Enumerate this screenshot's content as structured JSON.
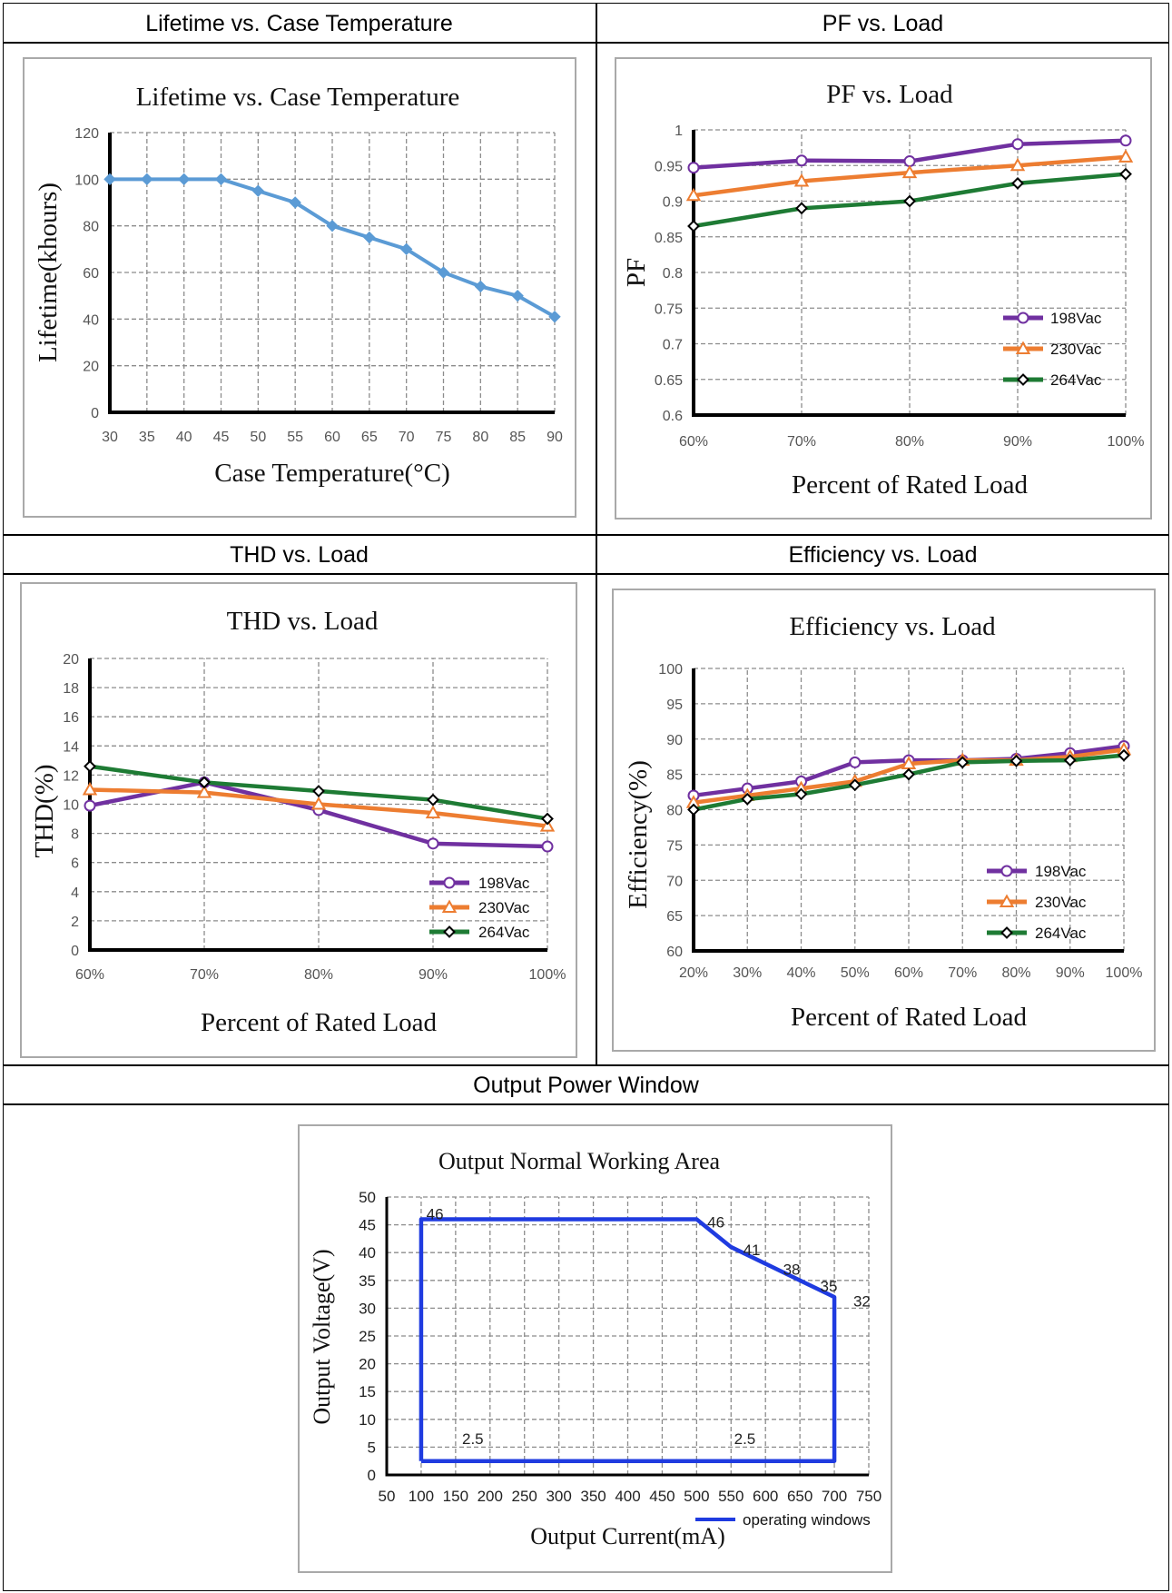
{
  "table": {
    "headers": [
      "Lifetime vs. Case Temperature",
      "PF vs. Load",
      "THD vs. Load",
      "Efficiency vs. Load",
      "Output Power Window"
    ]
  },
  "colors": {
    "purple": "#7030a0",
    "orange": "#ed7d31",
    "green": "#1e7b34",
    "blue_light": "#5b9bd5",
    "blue": "#1f3be0",
    "grid": "#8c8c8c"
  },
  "chart_data": [
    {
      "type": "line",
      "title": "Lifetime vs. Case Temperature",
      "xlabel": "Case Temperature(°C)",
      "ylabel": "Lifetime(khours)",
      "x": [
        30,
        35,
        40,
        45,
        50,
        55,
        60,
        65,
        70,
        75,
        80,
        85,
        90
      ],
      "xlim": [
        30,
        90
      ],
      "ylim": [
        0,
        120
      ],
      "yticks": [
        0,
        20,
        40,
        60,
        80,
        100,
        120
      ],
      "grid": true,
      "series": [
        {
          "values": [
            100,
            100,
            100,
            100,
            95,
            90,
            80,
            75,
            70,
            60,
            54,
            50,
            41
          ],
          "marker": "diamond",
          "color": "#5b9bd5"
        }
      ]
    },
    {
      "type": "line",
      "title": "PF vs. Load",
      "xlabel": "Percent of Rated Load",
      "ylabel": "PF",
      "categories": [
        "60%",
        "70%",
        "80%",
        "90%",
        "100%"
      ],
      "ylim": [
        0.6,
        1
      ],
      "yticks": [
        "0.6",
        "0.65",
        "0.7",
        "0.75",
        "0.8",
        "0.85",
        "0.9",
        "0.95",
        "1"
      ],
      "grid": true,
      "legend": "bottom-right",
      "series": [
        {
          "name": "198Vac",
          "values": [
            0.947,
            0.957,
            0.956,
            0.98,
            0.985
          ],
          "marker": "circle",
          "color": "#7030a0"
        },
        {
          "name": "230Vac",
          "values": [
            0.908,
            0.928,
            0.94,
            0.95,
            0.962
          ],
          "marker": "triangle",
          "color": "#ed7d31"
        },
        {
          "name": "264Vac",
          "values": [
            0.865,
            0.89,
            0.9,
            0.925,
            0.938
          ],
          "marker": "diamond",
          "color": "#1e7b34"
        }
      ]
    },
    {
      "type": "line",
      "title": "THD vs. Load",
      "xlabel": "Percent of Rated Load",
      "ylabel": "THD(%)",
      "categories": [
        "60%",
        "70%",
        "80%",
        "90%",
        "100%"
      ],
      "ylim": [
        0,
        20
      ],
      "yticks": [
        0,
        2,
        4,
        6,
        8,
        10,
        12,
        14,
        16,
        18,
        20
      ],
      "grid": true,
      "legend": "bottom-right",
      "series": [
        {
          "name": "198Vac",
          "values": [
            9.9,
            11.5,
            9.6,
            7.3,
            7.1
          ],
          "marker": "circle",
          "color": "#7030a0"
        },
        {
          "name": "230Vac",
          "values": [
            11.0,
            10.8,
            10.0,
            9.4,
            8.5
          ],
          "marker": "triangle",
          "color": "#ed7d31"
        },
        {
          "name": "264Vac",
          "values": [
            12.6,
            11.5,
            10.9,
            10.3,
            9.0
          ],
          "marker": "diamond",
          "color": "#1e7b34"
        }
      ]
    },
    {
      "type": "line",
      "title": "Efficiency vs. Load",
      "xlabel": "Percent of Rated Load",
      "ylabel": "Efficiency(%)",
      "categories": [
        "20%",
        "30%",
        "40%",
        "50%",
        "60%",
        "70%",
        "80%",
        "90%",
        "100%"
      ],
      "ylim": [
        60,
        100
      ],
      "yticks": [
        60,
        65,
        70,
        75,
        80,
        85,
        90,
        95,
        100
      ],
      "grid": true,
      "legend": "bottom-right",
      "series": [
        {
          "name": "198Vac",
          "values": [
            82.0,
            83.0,
            84.0,
            86.7,
            87.0,
            87.0,
            87.2,
            88.0,
            89.0
          ],
          "marker": "circle",
          "color": "#7030a0"
        },
        {
          "name": "230Vac",
          "values": [
            81.0,
            82.0,
            83.0,
            84.0,
            86.5,
            87.0,
            87.0,
            87.5,
            88.5
          ],
          "marker": "triangle",
          "color": "#ed7d31"
        },
        {
          "name": "264Vac",
          "values": [
            80.0,
            81.5,
            82.2,
            83.5,
            85.0,
            86.7,
            86.9,
            87.0,
            87.7
          ],
          "marker": "diamond",
          "color": "#1e7b34"
        }
      ]
    },
    {
      "type": "line",
      "title": "Output Normal Working Area",
      "xlabel": "Output Current(mA)",
      "ylabel": "Output Voltage(V)",
      "xlim": [
        50,
        750
      ],
      "ylim": [
        0,
        50
      ],
      "xticks": [
        50,
        100,
        150,
        200,
        250,
        300,
        350,
        400,
        450,
        500,
        550,
        600,
        650,
        700,
        750
      ],
      "yticks": [
        0,
        5,
        10,
        15,
        20,
        25,
        30,
        35,
        40,
        45,
        50
      ],
      "grid": true,
      "legend": "bottom-right",
      "series": [
        {
          "name": "operating windows",
          "color": "#1f3be0",
          "x": [
            100,
            100,
            500,
            550,
            600,
            650,
            700,
            700,
            100
          ],
          "y": [
            2.5,
            46,
            46,
            41,
            38,
            35,
            32,
            2.5,
            2.5
          ]
        }
      ],
      "annotations": [
        {
          "text": "46",
          "x": 120,
          "y": 47
        },
        {
          "text": "46",
          "x": 528,
          "y": 45.5
        },
        {
          "text": "41",
          "x": 580,
          "y": 40.5
        },
        {
          "text": "38",
          "x": 638,
          "y": 37
        },
        {
          "text": "35",
          "x": 692,
          "y": 34
        },
        {
          "text": "32",
          "x": 740,
          "y": 31.3
        },
        {
          "text": "2.5",
          "x": 175,
          "y": 6.5
        },
        {
          "text": "2.5",
          "x": 570,
          "y": 6.5
        }
      ]
    }
  ]
}
